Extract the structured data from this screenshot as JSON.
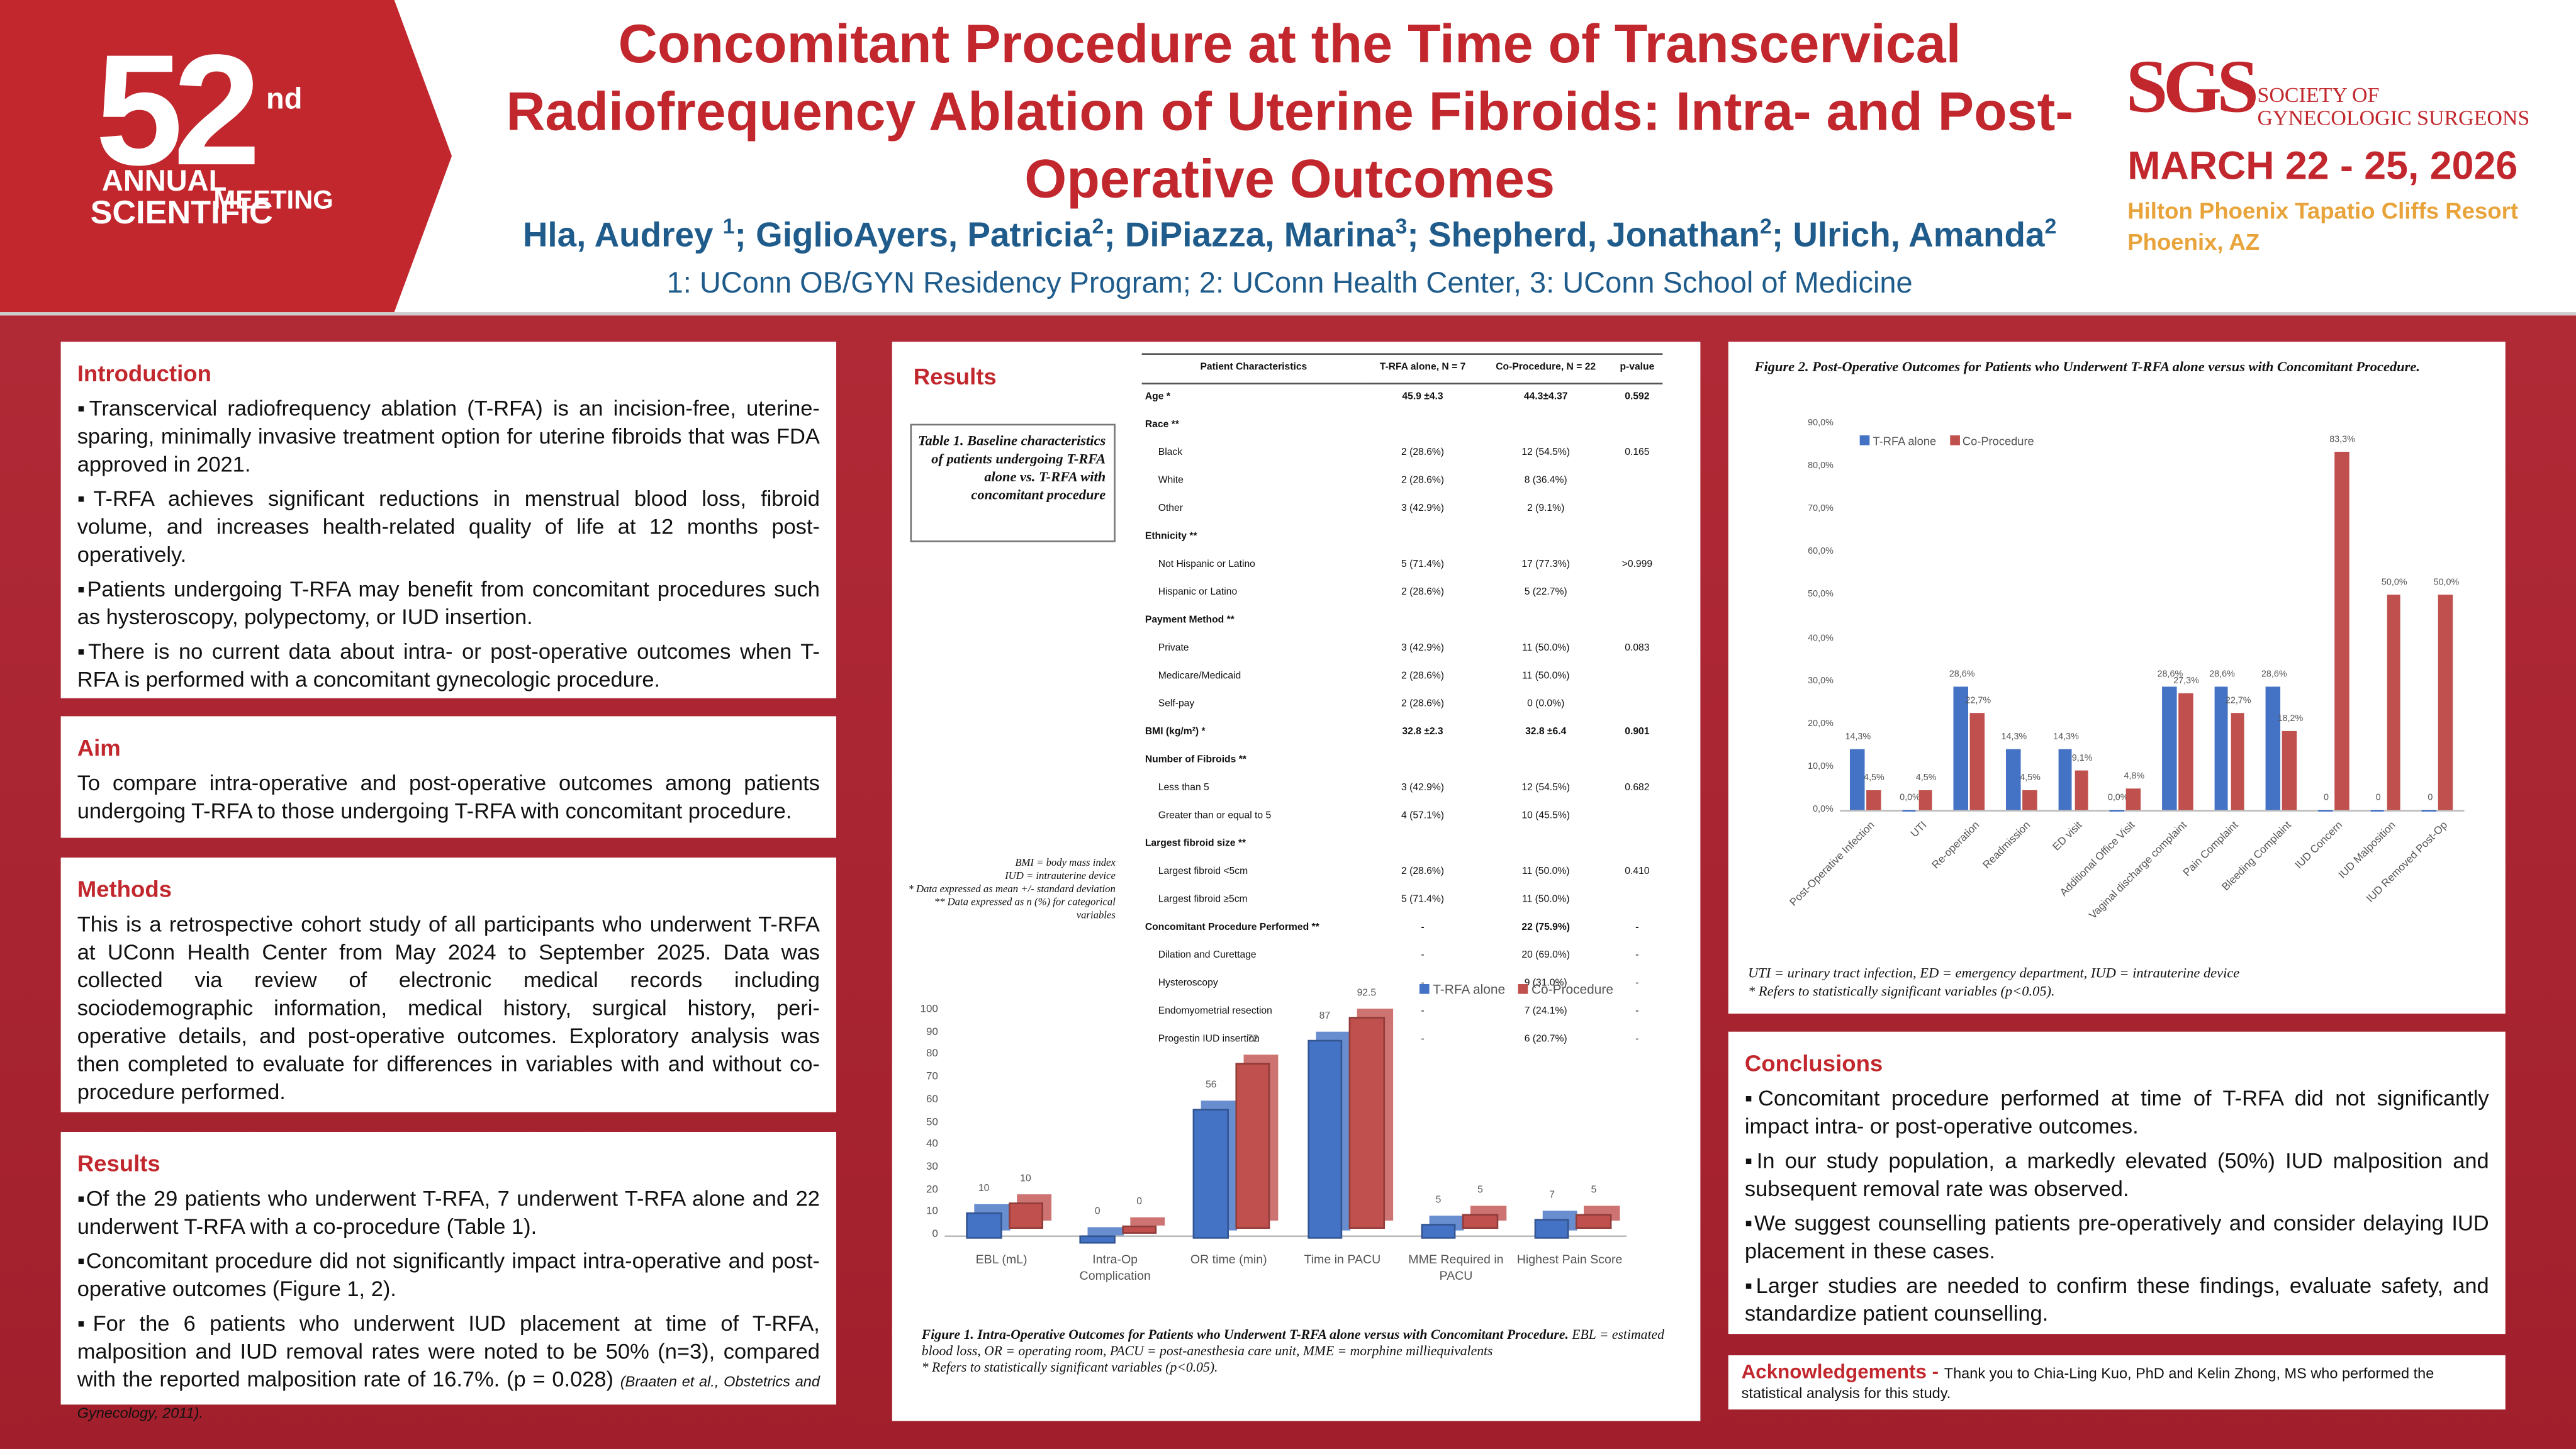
{
  "logo": {
    "number": "52",
    "suffix": "nd",
    "line1": "ANNUAL",
    "line2": "SCIENTIFIC",
    "line3": "MEETING"
  },
  "header": {
    "title": "Concomitant Procedure at the Time of Transcervical Radiofrequency Ablation of Uterine Fibroids: Intra- and Post-Operative Outcomes",
    "authors": [
      {
        "name": "Hla, Audrey ",
        "aff": "1"
      },
      {
        "name": "; GiglioAyers, Patricia",
        "aff": "2"
      },
      {
        "name": "; DiPiazza, Marina",
        "aff": "3"
      },
      {
        "name": "; Shepherd, Jonathan",
        "aff": "2"
      },
      {
        "name": "; Ulrich, Amanda",
        "aff": "2"
      }
    ],
    "affiliations": "1: UConn OB/GYN Residency Program; 2: UConn Health Center, 3: UConn School of Medicine"
  },
  "society": {
    "abbr": "SGS",
    "name1": "SOCIETY OF",
    "name2": "GYNECOLOGIC SURGEONS",
    "dates": "MARCH 22 - 25, 2026",
    "venue": "Hilton Phoenix Tapatio Cliffs Resort",
    "city": "Phoenix, AZ"
  },
  "introduction": {
    "title": "Introduction",
    "bullets": [
      "Transcervical radiofrequency ablation (T-RFA) is an incision-free, uterine-sparing, minimally invasive treatment option for uterine fibroids that was FDA approved in 2021.",
      "T-RFA achieves significant reductions in menstrual blood loss, fibroid volume, and increases health-related quality of life at 12 months post-operatively.",
      "Patients undergoing T-RFA may benefit from concomitant procedures such as hysteroscopy, polypectomy, or IUD insertion.",
      "There is no current data about intra- or post-operative outcomes when T-RFA is performed with a concomitant gynecologic procedure."
    ]
  },
  "aim": {
    "title": "Aim",
    "text": "To compare intra-operative and post-operative outcomes among patients undergoing T-RFA to those undergoing T-RFA with concomitant procedure."
  },
  "methods": {
    "title": "Methods",
    "text": "This is a retrospective cohort study of all participants who underwent T-RFA at UConn Health Center from May 2024 to September 2025. Data was collected via review of electronic medical records including sociodemographic information, medical history, surgical history, peri-operative details, and post-operative outcomes. Exploratory analysis was then completed to evaluate for differences in variables with and without co-procedure performed."
  },
  "results": {
    "title": "Results",
    "bullets": [
      {
        "text": "Of the 29 patients who underwent T-RFA, 7 underwent T-RFA alone and 22 underwent T-RFA with a co-procedure (Table 1)."
      },
      {
        "text": "Concomitant procedure did not significantly impact intra-operative and post-operative outcomes (Figure 1, 2)."
      },
      {
        "text": "For the 6 patients  who underwent IUD placement at time of T-RFA, malposition and IUD removal rates were noted to be 50% (n=3), compared with the reported malposition rate of 16.7%. (p = 0.028) ",
        "cite": "(Braaten et al., Obstetrics and Gynecology, 2011)."
      }
    ]
  },
  "middle": {
    "title": "Results"
  },
  "table": {
    "caption": "Table 1. Baseline characteristics of patients undergoing T-RFA alone vs. T-RFA with concomitant procedure",
    "header": [
      "Patient Characteristics",
      "T-RFA alone, N = 7",
      "Co-Procedure, N = 22",
      "p-value"
    ],
    "sections": [
      {
        "heading": "Age *",
        "t": "45.9 ±4.3",
        "co": "44.3±4.37",
        "p": "0.592"
      },
      {
        "heading": "Race **",
        "rows": [
          {
            "label": "Black",
            "t": "2 (28.6%)",
            "co": "12 (54.5%)",
            "p": "0.165"
          },
          {
            "label": "White",
            "t": "2 (28.6%)",
            "co": "8 (36.4%)"
          },
          {
            "label": "Other",
            "t": "3 (42.9%)",
            "co": "2 (9.1%)"
          }
        ]
      },
      {
        "heading": "Ethnicity **",
        "rows": [
          {
            "label": "Not Hispanic or Latino",
            "t": "5 (71.4%)",
            "co": "17 (77.3%)",
            "p": ">0.999"
          },
          {
            "label": "Hispanic or Latino",
            "t": "2 (28.6%)",
            "co": "5 (22.7%)"
          }
        ]
      },
      {
        "heading": "Payment Method **",
        "rows": [
          {
            "label": "Private",
            "t": "3 (42.9%)",
            "co": "11 (50.0%)",
            "p": "0.083"
          },
          {
            "label": "Medicare/Medicaid",
            "t": "2 (28.6%)",
            "co": "11 (50.0%)"
          },
          {
            "label": "Self-pay",
            "t": "2 (28.6%)",
            "co": "0 (0.0%)"
          }
        ]
      },
      {
        "heading": "BMI (kg/m²) *",
        "t": "32.8 ±2.3",
        "co": "32.8 ±6.4",
        "p": "0.901"
      },
      {
        "heading": "Number of Fibroids **",
        "rows": [
          {
            "label": "Less than 5",
            "t": "3 (42.9%)",
            "co": "12 (54.5%)",
            "p": "0.682"
          },
          {
            "label": "Greater than or equal to 5",
            "t": "4 (57.1%)",
            "co": "10 (45.5%)"
          }
        ]
      },
      {
        "heading": "Largest fibroid size **",
        "rows": [
          {
            "label": "Largest fibroid <5cm",
            "t": "2 (28.6%)",
            "co": "11 (50.0%)",
            "p": "0.410"
          },
          {
            "label": "Largest fibroid ≥5cm",
            "t": "5 (71.4%)",
            "co": "11 (50.0%)"
          }
        ]
      },
      {
        "heading": "Concomitant Procedure Performed **",
        "t": "-",
        "co": "22 (75.9%)",
        "p": "-",
        "rows": [
          {
            "label": "Dilation and Curettage",
            "t": "-",
            "co": "20 (69.0%)",
            "p": "-"
          },
          {
            "label": "Hysteroscopy",
            "t": "-",
            "co": "9 (31.0%)",
            "p": "-"
          },
          {
            "label": "Endomyometrial resection",
            "t": "-",
            "co": "7 (24.1%)",
            "p": "-"
          },
          {
            "label": "Progestin IUD insertion",
            "t": "-",
            "co": "6 (20.7%)",
            "p": "-"
          }
        ]
      }
    ],
    "notes": [
      "BMI = body mass index",
      "IUD = intrauterine device",
      "* Data expressed as mean +/- standard deviation",
      "** Data expressed as n (%) for categorical variables"
    ]
  },
  "chart_data": [
    {
      "type": "bar",
      "legend": "top-right",
      "categories": [
        "EBL (mL)",
        "Intra-Op Complication",
        "OR time (min)",
        "Time in PACU",
        "MME Required in PACU",
        "Highest Pain Score"
      ],
      "series": [
        {
          "name": "T-RFA alone",
          "color": "#4472c4",
          "values": [
            10,
            0,
            56,
            87,
            5,
            7
          ]
        },
        {
          "name": "Co-Procedure",
          "color": "#c0504d",
          "values": [
            10,
            0,
            72,
            92.5,
            5,
            5
          ]
        }
      ],
      "ylim": [
        0,
        100
      ],
      "yticks": [
        0,
        10,
        20,
        30,
        40,
        50,
        60,
        70,
        80,
        90,
        100
      ],
      "grid": false,
      "caption_title": "Figure 1. Intra-Operative Outcomes for Patients who Underwent T-RFA alone versus with Concomitant Procedure.",
      "caption_text": " EBL = estimated blood loss, OR = operating room, PACU = post-anesthesia care unit, MME = morphine milliequivalents",
      "caption_note": "* Refers to statistically significant variables (p<0.05)."
    },
    {
      "type": "bar",
      "legend": "top-left",
      "categories": [
        "Post-Operative Infection",
        "UTI",
        "Re-operation",
        "Readmission",
        "ED visit",
        "Additional Office Visit",
        "Vaginal discharge complaint",
        "Pain Complaint",
        "Bleeding Complaint",
        "IUD Concern",
        "IUD Malposition",
        "IUD Removed Post-Op"
      ],
      "series": [
        {
          "name": "T-RFA alone",
          "color": "#4472c4",
          "values": [
            14.3,
            0,
            28.6,
            14.3,
            14.3,
            0,
            28.6,
            28.6,
            28.6,
            0,
            0,
            0
          ],
          "value_labels": [
            "14,3%",
            "0,0%",
            "28,6%",
            "14,3%",
            "14,3%",
            "0,0%",
            "28,6%",
            "28,6%",
            "28,6%",
            "0",
            "0",
            "0"
          ]
        },
        {
          "name": "Co-Procedure",
          "color": "#c0504d",
          "values": [
            4.5,
            4.5,
            22.7,
            4.5,
            9.1,
            4.8,
            27.3,
            22.7,
            18.2,
            83.3,
            50,
            50
          ],
          "value_labels": [
            "4,5%",
            "4,5%",
            "22,7%",
            "4,5%",
            "9,1%",
            "4,8%",
            "27,3%",
            "22,7%",
            "18,2%",
            "83,3%",
            "50,0%",
            "50,0%"
          ]
        }
      ],
      "ylim": [
        0,
        90
      ],
      "yticks": [
        {
          "value": 0,
          "label": "0,0%"
        },
        {
          "value": 10,
          "label": "10,0%"
        },
        {
          "value": 20,
          "label": "20,0%"
        },
        {
          "value": 30,
          "label": "30,0%"
        },
        {
          "value": 40,
          "label": "40,0%"
        },
        {
          "value": 50,
          "label": "50,0%"
        },
        {
          "value": 60,
          "label": "60,0%"
        },
        {
          "value": 70,
          "label": "70,0%"
        },
        {
          "value": 80,
          "label": "80,0%"
        },
        {
          "value": 90,
          "label": "90,0%"
        }
      ],
      "grid": false,
      "caption_title": "Figure 2. Post-Operative Outcomes for Patients who Underwent T-RFA alone versus with Concomitant Procedure.",
      "caption_text": "UTI = urinary tract infection, ED = emergency department, IUD = intrauterine device",
      "caption_note": "* Refers to statistically significant variables (p<0.05)."
    }
  ],
  "conclusions": {
    "title": "Conclusions",
    "bullets": [
      "Concomitant procedure performed at time of T-RFA did not significantly impact intra- or  post-operative outcomes.",
      "In our study population, a markedly elevated (50%) IUD malposition and subsequent removal rate was observed.",
      "We suggest counselling patients pre-operatively and consider delaying IUD placement in these cases.",
      "Larger studies are needed to confirm these findings, evaluate safety, and standardize patient counselling."
    ]
  },
  "acknowledgements": {
    "title": "Acknowledgements - ",
    "text": "Thank you to Chia-Ling Kuo, PhD and Kelin Zhong, MS who performed the statistical analysis for this study."
  }
}
